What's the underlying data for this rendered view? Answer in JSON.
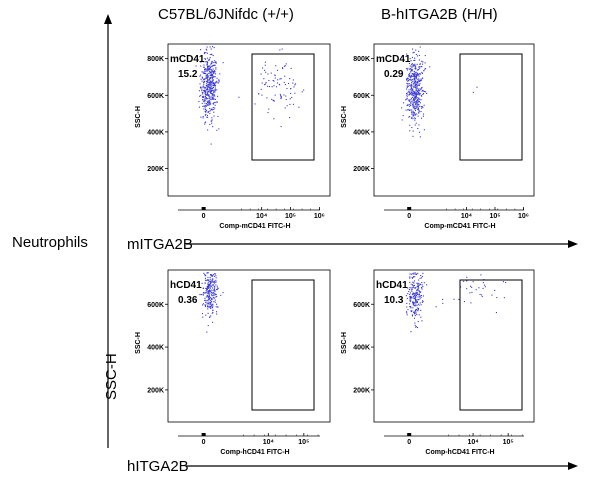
{
  "column_titles": [
    "C57BL/6JNifdc  (+/+)",
    "B-hITGA2B (H/H)"
  ],
  "row_label": "Neutrophils",
  "y_arrow_label": "SSC-H",
  "row_arrow_labels": [
    "mITGA2B",
    "hITGA2B"
  ],
  "colors": {
    "dots": "#3b3bd6",
    "gate": "#000000",
    "axis": "#000000"
  },
  "chart_data": [
    {
      "type": "scatter",
      "xlabel": "Comp-mCD41 FITC-H",
      "ylabel": "SSC-H",
      "x_ticks": [
        "0",
        "10⁴",
        "10⁵",
        "10⁶"
      ],
      "x_scale": "biexponential",
      "y_ticks": [
        "200K",
        "400K",
        "600K",
        "800K"
      ],
      "ylim": [
        50000,
        880000
      ],
      "gate_label": "mCD41",
      "gate_value": "15.2",
      "points": [
        {
          "x": 0.5,
          "y": 650000,
          "n": 450,
          "sx": 0.45,
          "sy": 90000
        },
        {
          "x": 4.6,
          "y": 660000,
          "n": 90,
          "sx": 0.35,
          "sy": 80000
        }
      ]
    },
    {
      "type": "scatter",
      "xlabel": "Comp-mCD41 FITC-H",
      "ylabel": "SSC-H",
      "x_ticks": [
        "0",
        "10⁴",
        "10⁵",
        "10⁶"
      ],
      "x_scale": "biexponential",
      "y_ticks": [
        "200K",
        "400K",
        "600K",
        "800K"
      ],
      "ylim": [
        50000,
        880000
      ],
      "gate_label": "mCD41",
      "gate_value": "0.29",
      "points": [
        {
          "x": 0.5,
          "y": 640000,
          "n": 450,
          "sx": 0.45,
          "sy": 95000
        },
        {
          "x": 4.5,
          "y": 640000,
          "n": 2,
          "sx": 0.3,
          "sy": 60000
        }
      ]
    },
    {
      "type": "scatter",
      "xlabel": "Comp-hCD41 FITC-H",
      "ylabel": "SSC-H",
      "x_ticks": [
        "0",
        "10⁴",
        "10⁵"
      ],
      "x_scale": "biexponential",
      "y_ticks": [
        "200K",
        "400K",
        "600K"
      ],
      "ylim": [
        50000,
        760000
      ],
      "gate_label": "hCD41",
      "gate_value": "0.36",
      "points": [
        {
          "x": 0.6,
          "y": 660000,
          "n": 240,
          "sx": 0.4,
          "sy": 50000
        }
      ]
    },
    {
      "type": "scatter",
      "xlabel": "Comp-hCD41 FITC-H",
      "ylabel": "SSC-H",
      "x_ticks": [
        "0",
        "10⁴",
        "10⁵"
      ],
      "x_scale": "biexponential",
      "y_ticks": [
        "200K",
        "400K",
        "600K"
      ],
      "ylim": [
        50000,
        760000
      ],
      "gate_label": "hCD41",
      "gate_value": "10.3",
      "points": [
        {
          "x": 0.6,
          "y": 640000,
          "n": 220,
          "sx": 0.4,
          "sy": 55000
        },
        {
          "x": 3.9,
          "y": 660000,
          "n": 35,
          "sx": 0.45,
          "sy": 45000
        }
      ]
    }
  ]
}
